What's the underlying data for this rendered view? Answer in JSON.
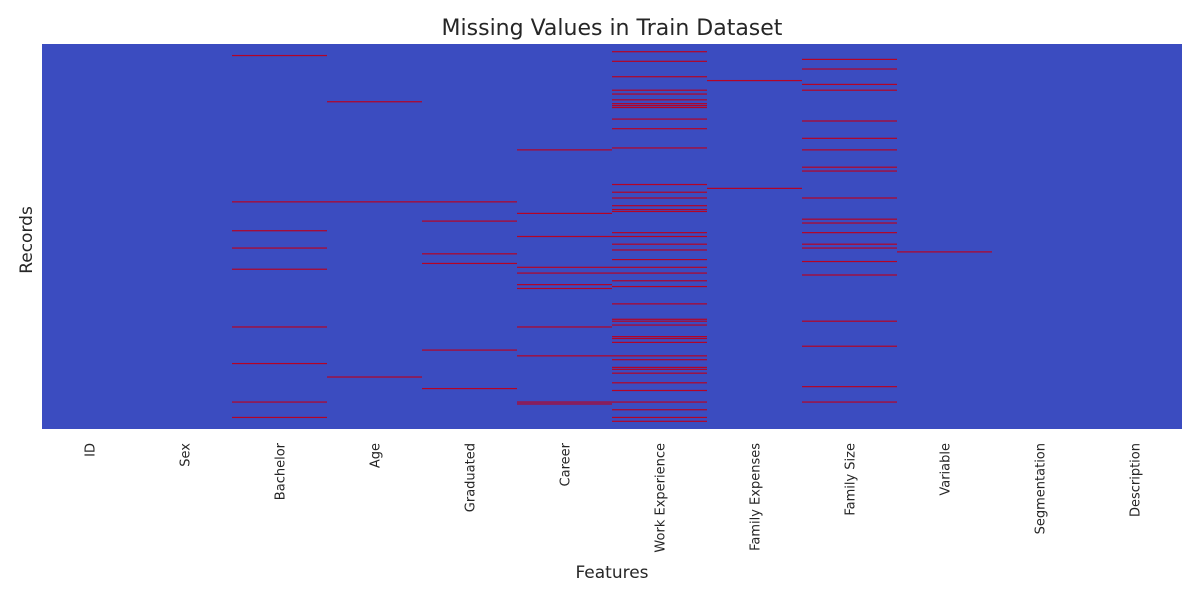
{
  "chart_data": {
    "type": "heatmap",
    "title": "Missing Values in Train Dataset",
    "xlabel": "Features",
    "ylabel": "Records",
    "categories": [
      "ID",
      "Sex",
      "Bachelor",
      "Age",
      "Graduated",
      "Career",
      "Work Experience",
      "Family Expenses",
      "Family  Size",
      "Variable",
      "Segmentation",
      "Description"
    ],
    "value_range": [
      0,
      1
    ],
    "colors": {
      "present": "#3b4cc0",
      "missing": "#b40426"
    },
    "y_ticks_shown": false,
    "grid": false,
    "missing_rows": {
      "ID": [],
      "Sex": [],
      "Bachelor": [
        3.0,
        41.0,
        48.5,
        53.0,
        58.5,
        73.5,
        83.0,
        93.0,
        97.0
      ],
      "Age": [
        15.0,
        41.0,
        86.5
      ],
      "Graduated": [
        41.0,
        46.0,
        54.5,
        57.0,
        79.5,
        89.5
      ],
      "Career": [
        27.5,
        44.0,
        50.0,
        58.0,
        59.5,
        62.5,
        63.5,
        73.5,
        81.0,
        93.0,
        93.5
      ],
      "Work Experience": [
        2.0,
        4.5,
        8.5,
        12.0,
        13.0,
        14.5,
        15.5,
        16.0,
        16.5,
        19.5,
        22.0,
        27.0,
        36.5,
        38.5,
        40.0,
        42.0,
        43.0,
        43.5,
        49.0,
        50.0,
        52.0,
        53.5,
        56.0,
        58.0,
        59.5,
        61.5,
        63.0,
        67.5,
        71.5,
        72.0,
        73.0,
        76.0,
        76.5,
        77.5,
        81.0,
        82.0,
        84.0,
        84.5,
        85.5,
        88.0,
        90.0,
        93.0,
        95.0,
        97.0,
        98.0
      ],
      "Family Expenses": [
        9.5,
        37.5
      ],
      "Family  Size": [
        4.0,
        6.5,
        10.5,
        12.0,
        20.0,
        24.5,
        27.5,
        32.0,
        33.0,
        40.0,
        45.5,
        46.5,
        49.0,
        52.0,
        53.0,
        56.5,
        60.0,
        72.0,
        78.5,
        89.0,
        93.0
      ],
      "Variable": [
        54.0
      ],
      "Segmentation": [],
      "Description": []
    },
    "missing_rows_unit": "percent of records from top"
  }
}
